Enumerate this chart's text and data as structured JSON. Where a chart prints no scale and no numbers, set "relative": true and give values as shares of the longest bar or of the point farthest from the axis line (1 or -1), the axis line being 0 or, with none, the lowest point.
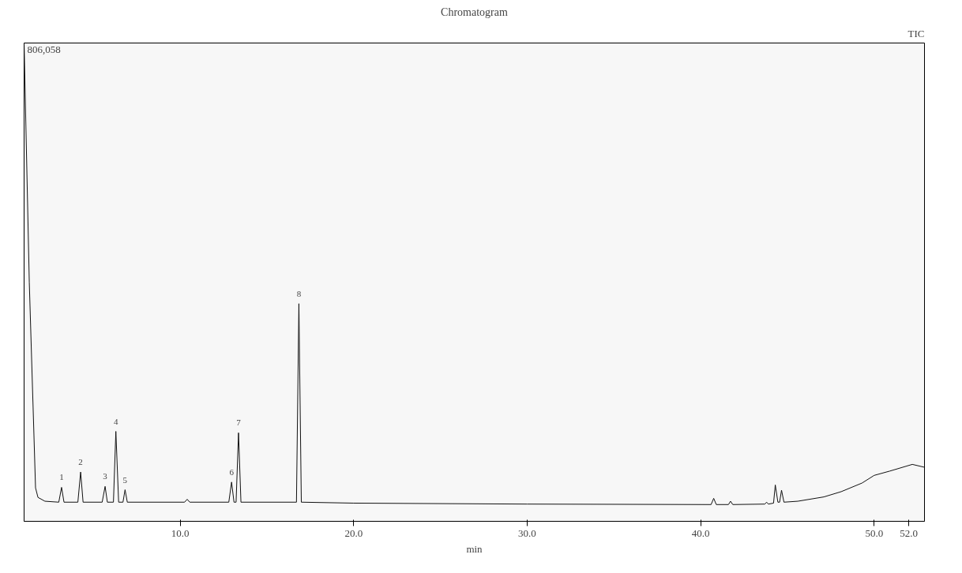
{
  "chart_data": {
    "type": "line",
    "title": "Chromatogram",
    "xlabel": "min",
    "relative": true,
    "x": [
      1.0,
      1.3,
      1.66,
      1.8,
      2.2,
      3.0,
      3.16,
      3.3,
      4.1,
      4.26,
      4.4,
      5.5,
      5.67,
      5.8,
      6.15,
      6.29,
      6.45,
      6.7,
      6.82,
      6.95,
      10.25,
      10.4,
      10.55,
      12.8,
      12.96,
      13.1,
      13.22,
      13.36,
      13.5,
      16.7,
      16.84,
      16.98,
      20.0,
      30.0,
      40.6,
      40.75,
      40.9,
      41.6,
      41.72,
      41.85,
      43.7,
      43.8,
      43.9,
      44.2,
      44.3,
      44.45,
      44.55,
      44.66,
      44.8,
      45.6,
      47.1,
      48.1,
      49.3,
      50.0,
      50.9,
      52.2,
      52.9
    ],
    "series": [
      {
        "color": "#111111",
        "values": [
          1.0,
          0.5,
          0.07,
          0.05,
          0.042,
          0.04,
          0.071,
          0.04,
          0.04,
          0.103,
          0.04,
          0.04,
          0.073,
          0.04,
          0.04,
          0.188,
          0.04,
          0.04,
          0.066,
          0.04,
          0.04,
          0.046,
          0.04,
          0.04,
          0.082,
          0.04,
          0.04,
          0.185,
          0.04,
          0.04,
          0.455,
          0.04,
          0.038,
          0.036,
          0.035,
          0.048,
          0.035,
          0.035,
          0.042,
          0.035,
          0.036,
          0.04,
          0.036,
          0.038,
          0.076,
          0.04,
          0.04,
          0.065,
          0.04,
          0.042,
          0.051,
          0.062,
          0.08,
          0.096,
          0.105,
          0.119,
          0.113
        ]
      }
    ],
    "xlim": [
      1.0,
      52.9
    ],
    "xticks": [
      {
        "value": 10,
        "label": "10.0"
      },
      {
        "value": 20,
        "label": "20.0"
      },
      {
        "value": 30,
        "label": "30.0"
      },
      {
        "value": 40,
        "label": "40.0"
      },
      {
        "value": 50,
        "label": "50.0"
      },
      {
        "value": 52,
        "label": "52.0"
      }
    ],
    "tick_labels": "x",
    "grid": false,
    "annotations": [
      "806,058",
      "TIC",
      {
        "text": "1",
        "x": 3.16,
        "y": 0.071
      },
      {
        "text": "2",
        "x": 4.26,
        "y": 0.103
      },
      {
        "text": "3",
        "x": 5.67,
        "y": 0.073
      },
      {
        "text": "4",
        "x": 6.29,
        "y": 0.188
      },
      {
        "text": "5",
        "x": 6.82,
        "y": 0.066
      },
      {
        "text": "6",
        "x": 12.96,
        "y": 0.082
      },
      {
        "text": "7",
        "x": 13.36,
        "y": 0.185
      },
      {
        "text": "8",
        "x": 16.84,
        "y": 0.455
      }
    ]
  }
}
